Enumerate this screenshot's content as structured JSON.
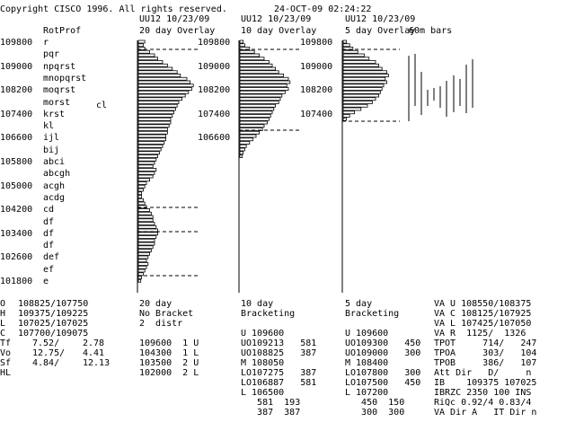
{
  "header": {
    "copyright": "Copyright CISCO 1996. All rights reserved.",
    "datetime": "24-OCT-09 02:24:22"
  },
  "panel_titles": [
    {
      "symbol": "UU12 10/23/09",
      "label": "20 day Overlay"
    },
    {
      "symbol": "UU12 10/23/09",
      "label": "10 day Overlay"
    },
    {
      "symbol": "UU12 10/23/09",
      "label": "5 day Overlay"
    },
    {
      "symbol": "",
      "label": "60m bars"
    }
  ],
  "rotprof": {
    "title": "RotProf",
    "price_labels": [
      "109800",
      "109000",
      "108200",
      "107400",
      "106600",
      "105800",
      "105000",
      "104200",
      "103400",
      "102600",
      "101800"
    ],
    "letters": [
      "r",
      "pqr",
      "npqrst",
      "mnopqrst",
      "moqrst",
      "morst",
      "krst",
      "kl",
      "ijl",
      "bij",
      "abci",
      "abcgh",
      "acgh",
      "acdg",
      "cd",
      "df",
      "df",
      "df",
      "def",
      "ef",
      "e"
    ],
    "marker": "cl"
  },
  "overlay_prices": {
    "p20": [
      "109800",
      "109000",
      "108200",
      "107400",
      "106600"
    ],
    "p10": [
      "109800",
      "109000",
      "108200",
      "107400"
    ]
  },
  "bars": {
    "p20": [
      8,
      6,
      8,
      14,
      20,
      24,
      30,
      36,
      42,
      48,
      52,
      60,
      64,
      68,
      66,
      62,
      58,
      54,
      50,
      48,
      46,
      44,
      42,
      40,
      40,
      38,
      36,
      36,
      34,
      34,
      32,
      30,
      28,
      26,
      24,
      22,
      20,
      18,
      22,
      20,
      18,
      14,
      10,
      8,
      6,
      4,
      4,
      6,
      8,
      10,
      14,
      16,
      18,
      18,
      20,
      22,
      24,
      24,
      22,
      20,
      20,
      18,
      16,
      14,
      12,
      10,
      12,
      10,
      8,
      6,
      4,
      3
    ],
    "p10": [
      4,
      6,
      12,
      18,
      24,
      30,
      36,
      40,
      44,
      48,
      54,
      60,
      62,
      58,
      60,
      56,
      52,
      50,
      48,
      44,
      42,
      40,
      38,
      36,
      34,
      30,
      28,
      24,
      20,
      16,
      12,
      8,
      6,
      4,
      3
    ],
    "p5": [
      4,
      8,
      12,
      18,
      26,
      32,
      40,
      44,
      48,
      54,
      56,
      52,
      54,
      50,
      48,
      46,
      44,
      40,
      36,
      30,
      22,
      14,
      8,
      4
    ]
  },
  "bottom": {
    "ohlc": [
      {
        "k": "O",
        "v": "108825/107750"
      },
      {
        "k": "H",
        "v": "109375/109225"
      },
      {
        "k": "L",
        "v": "107025/107025"
      },
      {
        "k": "C",
        "v": "107700/109075"
      }
    ],
    "stats": [
      {
        "k": "Tf",
        "a": "7.52/",
        "b": "2.78"
      },
      {
        "k": "Vo",
        "a": "12.75/",
        "b": "4.41"
      },
      {
        "k": "Sf",
        "a": "4.84/",
        "b": "12.13"
      },
      {
        "k": "HL",
        "a": "",
        "b": ""
      }
    ],
    "c20": {
      "days": "20 day",
      "status": "No Bracket",
      "distr": "2  distr",
      "rows": [
        "109600  1 U",
        "104300  1 L",
        "103500  2 U",
        "102000  2 L"
      ]
    },
    "c10": {
      "days": "10 day",
      "status": "Bracketing",
      "rows": [
        "U 109600",
        "UO109213   581",
        "UO108825   387",
        "M 108050",
        "LO107275   387",
        "LO106887   581",
        "L 106500",
        "   581  193",
        "   387  387"
      ]
    },
    "c5": {
      "days": "5 day",
      "status": "Bracketing",
      "rows": [
        "U 109600",
        "UO109300   450",
        "UO109000   300",
        "M 108400",
        "LO107800   300",
        "LO107500   450",
        "L 107200",
        "   450  150",
        "   300  300"
      ]
    },
    "right": [
      "VA U 108550/108375",
      "VA C 108125/107925",
      "VA L 107425/107050",
      "VA R  1125/  1326",
      "TPOT     714/   247",
      "TPOA     303/   104",
      "TPOB     386/   107",
      "Att Dir   D/     n",
      "IB    109375 107025",
      "IBRZC 2350 100 INS",
      "RiQc 0.92/4 0.83/4",
      "VA Dir A   IT Dir n"
    ]
  }
}
